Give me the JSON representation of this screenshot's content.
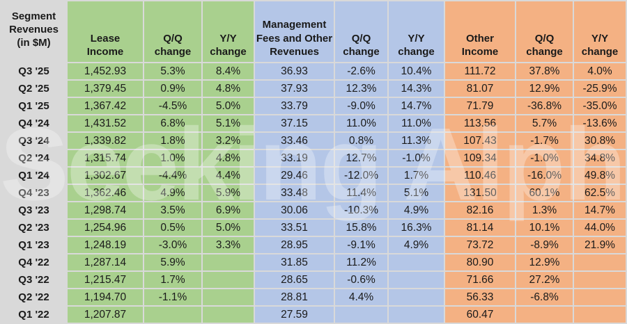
{
  "watermark": {
    "text": "Seeking Alpha"
  },
  "colors": {
    "corner_and_quarters": "#d9d9d9",
    "lease_group": "#a9d08e",
    "mgmt_group": "#b4c6e7",
    "other_group": "#f4b183",
    "grid_background": "#d9d9d9",
    "text": "#1a1a1a"
  },
  "chart_data": {
    "type": "table",
    "title": "Segment Revenues (in $M)",
    "corner_header": "Segment Revenues (in $M)",
    "column_groups": [
      {
        "name": "Lease Income",
        "color": "#a9d08e",
        "columns": [
          "Lease Income",
          "Q/Q change",
          "Y/Y change"
        ]
      },
      {
        "name": "Management Fees and Other Revenues",
        "color": "#b4c6e7",
        "columns": [
          "Management Fees and Other Revenues",
          "Q/Q change",
          "Y/Y change"
        ]
      },
      {
        "name": "Other Income",
        "color": "#f4b183",
        "columns": [
          "Other Income",
          "Q/Q change",
          "Y/Y change"
        ]
      }
    ],
    "headers": [
      "Lease Income",
      "Q/Q change",
      "Y/Y change",
      "Management Fees and Other Revenues",
      "Q/Q change",
      "Y/Y change",
      "Other Income",
      "Q/Q change",
      "Y/Y change"
    ],
    "rows": [
      {
        "quarter": "Q3 '25",
        "cells": [
          "1,452.93",
          "5.3%",
          "8.4%",
          "36.93",
          "-2.6%",
          "10.4%",
          "111.72",
          "37.8%",
          "4.0%"
        ]
      },
      {
        "quarter": "Q2 '25",
        "cells": [
          "1,379.45",
          "0.9%",
          "4.8%",
          "37.93",
          "12.3%",
          "14.3%",
          "81.07",
          "12.9%",
          "-25.9%"
        ]
      },
      {
        "quarter": "Q1 '25",
        "cells": [
          "1,367.42",
          "-4.5%",
          "5.0%",
          "33.79",
          "-9.0%",
          "14.7%",
          "71.79",
          "-36.8%",
          "-35.0%"
        ]
      },
      {
        "quarter": "Q4 '24",
        "cells": [
          "1,431.52",
          "6.8%",
          "5.1%",
          "37.15",
          "11.0%",
          "11.0%",
          "113.56",
          "5.7%",
          "-13.6%"
        ]
      },
      {
        "quarter": "Q3 '24",
        "cells": [
          "1,339.82",
          "1.8%",
          "3.2%",
          "33.46",
          "0.8%",
          "11.3%",
          "107.43",
          "-1.7%",
          "30.8%"
        ]
      },
      {
        "quarter": "Q2 '24",
        "cells": [
          "1,315.74",
          "1.0%",
          "4.8%",
          "33.19",
          "12.7%",
          "-1.0%",
          "109.34",
          "-1.0%",
          "34.8%"
        ]
      },
      {
        "quarter": "Q1 '24",
        "cells": [
          "1,302.67",
          "-4.4%",
          "4.4%",
          "29.46",
          "-12.0%",
          "1.7%",
          "110.46",
          "-16.0%",
          "49.8%"
        ]
      },
      {
        "quarter": "Q4 '23",
        "cells": [
          "1,362.46",
          "4.9%",
          "5.9%",
          "33.48",
          "11.4%",
          "5.1%",
          "131.50",
          "60.1%",
          "62.5%"
        ]
      },
      {
        "quarter": "Q3 '23",
        "cells": [
          "1,298.74",
          "3.5%",
          "6.9%",
          "30.06",
          "-10.3%",
          "4.9%",
          "82.16",
          "1.3%",
          "14.7%"
        ]
      },
      {
        "quarter": "Q2 '23",
        "cells": [
          "1,254.96",
          "0.5%",
          "5.0%",
          "33.51",
          "15.8%",
          "16.3%",
          "81.14",
          "10.1%",
          "44.0%"
        ]
      },
      {
        "quarter": "Q1 '23",
        "cells": [
          "1,248.19",
          "-3.0%",
          "3.3%",
          "28.95",
          "-9.1%",
          "4.9%",
          "73.72",
          "-8.9%",
          "21.9%"
        ]
      },
      {
        "quarter": "Q4 '22",
        "cells": [
          "1,287.14",
          "5.9%",
          "",
          "31.85",
          "11.2%",
          "",
          "80.90",
          "12.9%",
          ""
        ]
      },
      {
        "quarter": "Q3 '22",
        "cells": [
          "1,215.47",
          "1.7%",
          "",
          "28.65",
          "-0.6%",
          "",
          "71.66",
          "27.2%",
          ""
        ]
      },
      {
        "quarter": "Q2 '22",
        "cells": [
          "1,194.70",
          "-1.1%",
          "",
          "28.81",
          "4.4%",
          "",
          "56.33",
          "-6.8%",
          ""
        ]
      },
      {
        "quarter": "Q1 '22",
        "cells": [
          "1,207.87",
          "",
          "",
          "27.59",
          "",
          "",
          "60.47",
          "",
          ""
        ]
      }
    ]
  }
}
